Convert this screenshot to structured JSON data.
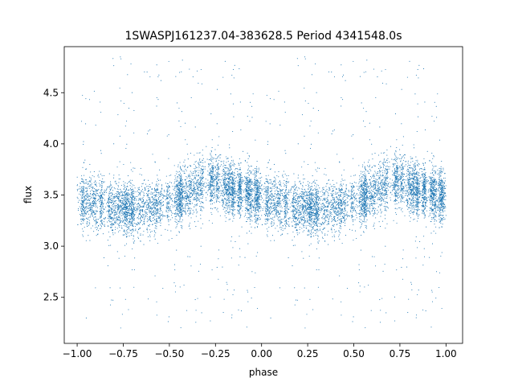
{
  "chart_data": {
    "type": "scatter",
    "title": "1SWASPJ161237.04-383628.5 Period 4341548.0s",
    "xlabel": "phase",
    "ylabel": "flux",
    "xlim": [
      -1.07,
      1.09
    ],
    "ylim": [
      2.05,
      4.95
    ],
    "xticks": [
      -1.0,
      -0.75,
      -0.5,
      -0.25,
      0.0,
      0.25,
      0.5,
      0.75,
      1.0
    ],
    "xtick_labels": [
      "−1.00",
      "−0.75",
      "−0.50",
      "−0.25",
      "0.00",
      "0.25",
      "0.50",
      "0.75",
      "1.00"
    ],
    "yticks": [
      2.5,
      3.0,
      3.5,
      4.0,
      4.5
    ],
    "ytick_labels": [
      "2.5",
      "3.0",
      "3.5",
      "4.0",
      "4.5"
    ],
    "grid": false,
    "marker_color": "#1f77b4",
    "phase_range": [
      -1.0,
      1.0
    ],
    "flux_profile": [
      {
        "phase": 0.0,
        "flux": 3.45
      },
      {
        "phase": 0.1,
        "flux": 3.42
      },
      {
        "phase": 0.2,
        "flux": 3.38
      },
      {
        "phase": 0.3,
        "flux": 3.36
      },
      {
        "phase": 0.4,
        "flux": 3.38
      },
      {
        "phase": 0.5,
        "flux": 3.45
      },
      {
        "phase": 0.6,
        "flux": 3.52
      },
      {
        "phase": 0.7,
        "flux": 3.62
      },
      {
        "phase": 0.75,
        "flux": 3.65
      },
      {
        "phase": 0.8,
        "flux": 3.58
      },
      {
        "phase": 0.9,
        "flux": 3.52
      },
      {
        "phase": 1.0,
        "flux": 3.5
      }
    ],
    "scatter_spread": 0.13,
    "outlier_range": [
      2.2,
      4.85
    ]
  }
}
